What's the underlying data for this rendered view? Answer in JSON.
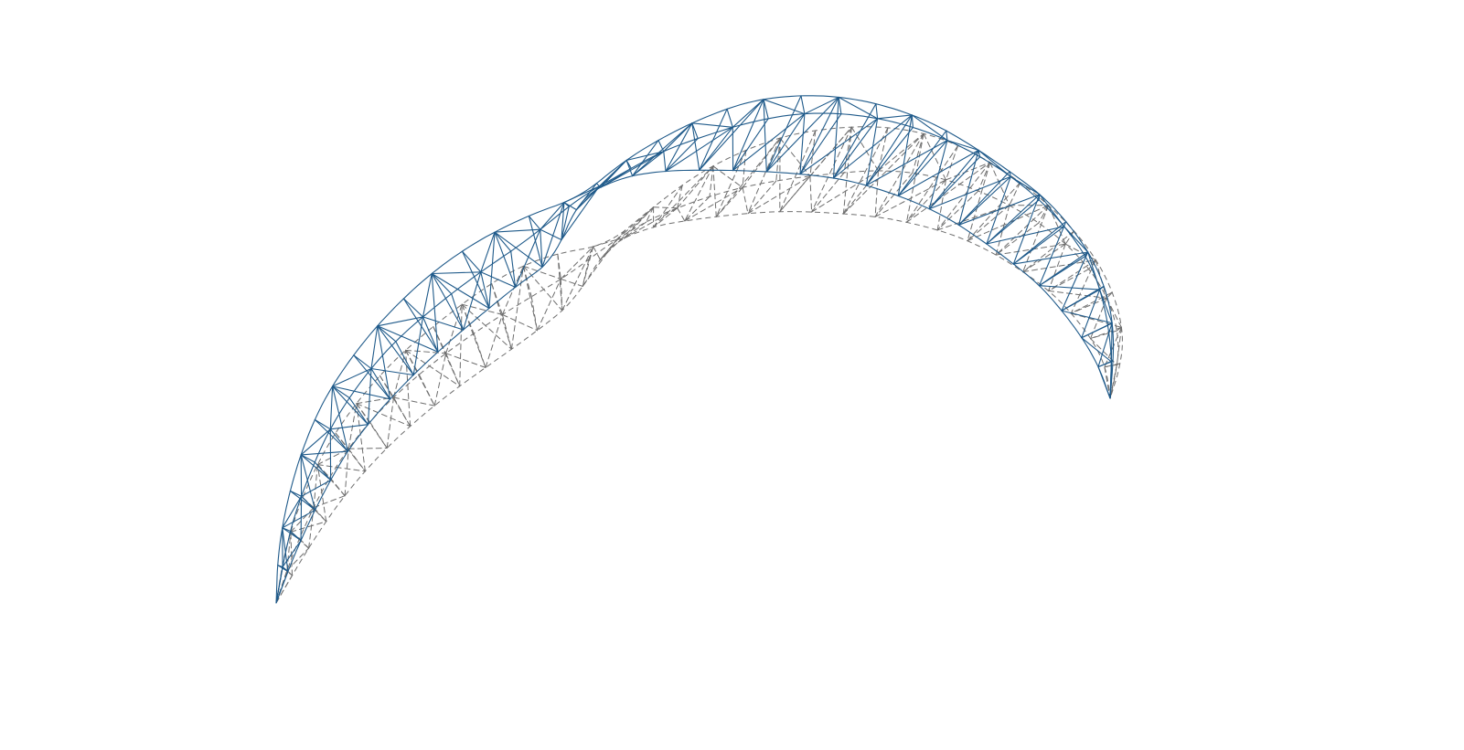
{
  "figure": {
    "description_visible_text": [],
    "deformed_truss": {
      "line_style": "solid"
    },
    "undeformed_truss": {
      "line_style": "dashed"
    }
  },
  "colors": {
    "background": "#ffffff",
    "deformed": "#1f5a8a",
    "undeformed": "#6e6e6e"
  }
}
